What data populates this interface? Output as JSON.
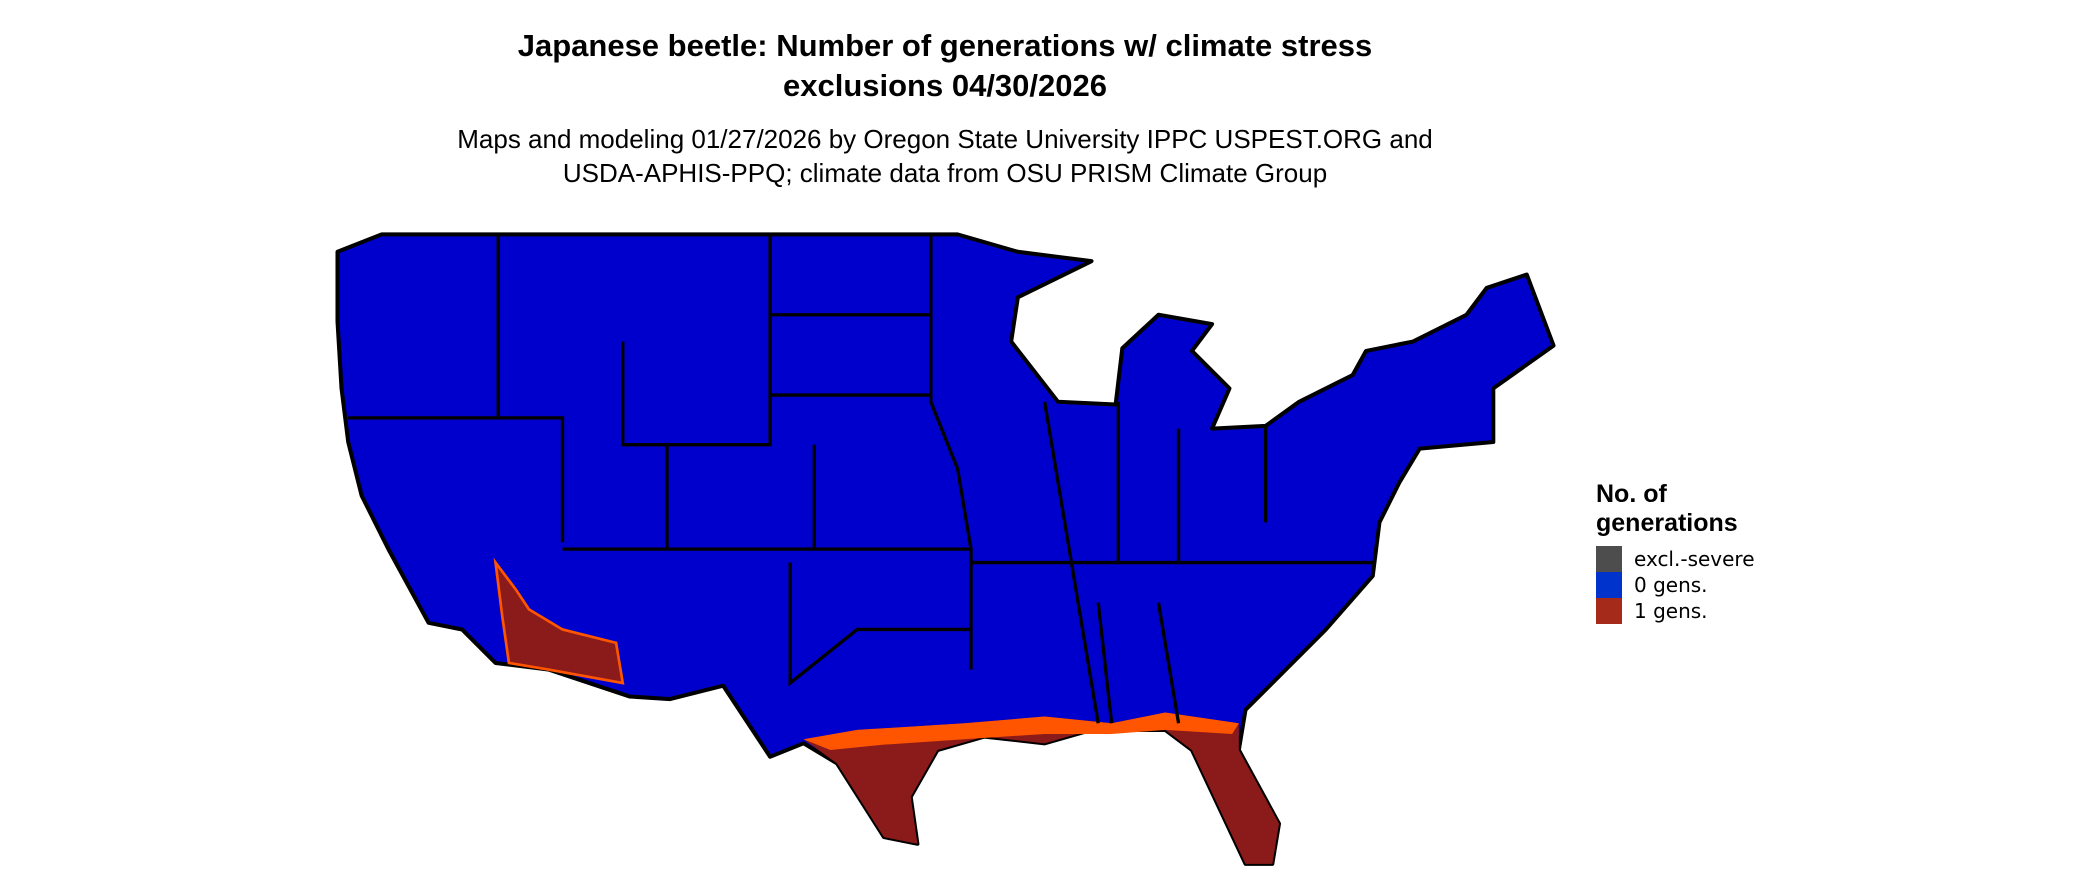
{
  "title_line1": "Japanese beetle: Number of generations w/ climate stress",
  "title_line2": "exclusions 04/30/2026",
  "subtitle_line1": "Maps and modeling 01/27/2026 by Oregon State University IPPC USPEST.ORG and",
  "subtitle_line2": "USDA-APHIS-PPQ; climate data from OSU PRISM Climate Group",
  "legend": {
    "title_line1": "No. of",
    "title_line2": "generations",
    "items": [
      {
        "label": "excl.-severe",
        "color": "#4D4D4D"
      },
      {
        "label": "0 gens.",
        "color": "#0033CC"
      },
      {
        "label": "1 gens.",
        "color": "#A52A1A"
      }
    ]
  },
  "map_colors": {
    "zero_gens": "#0000CC",
    "one_gen_dark": "#8B1A1A",
    "one_gen_light": "#FF5500"
  }
}
